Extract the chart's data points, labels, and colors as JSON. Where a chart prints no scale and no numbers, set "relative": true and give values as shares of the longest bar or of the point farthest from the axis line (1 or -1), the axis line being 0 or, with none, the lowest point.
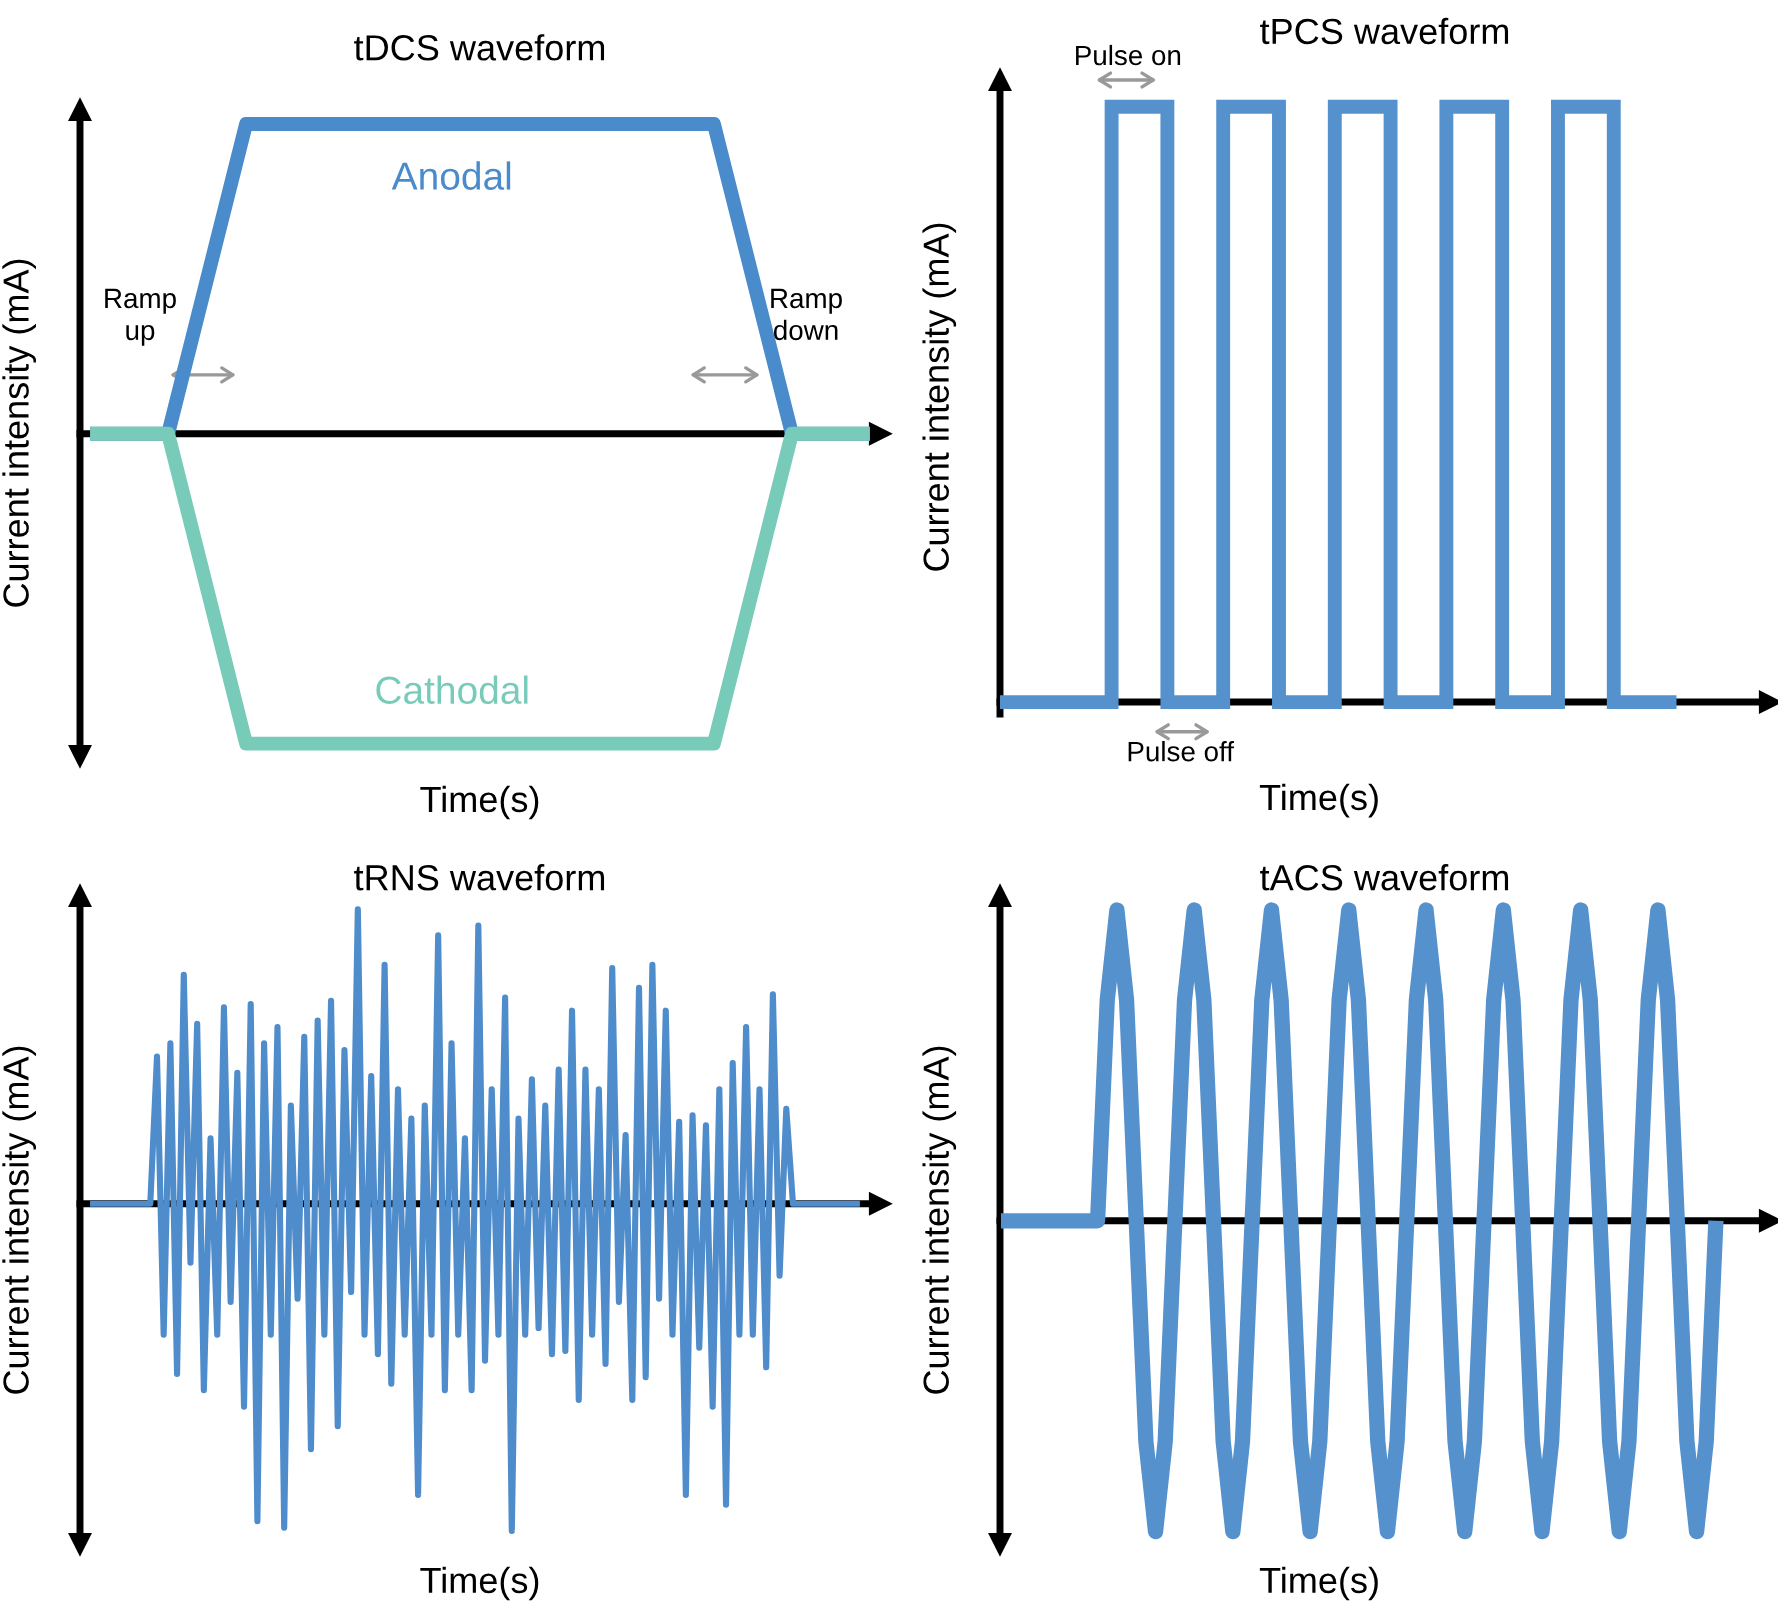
{
  "chart_data": [
    {
      "type": "line",
      "title": "tDCS waveform",
      "xlabel": "Time(s)",
      "ylabel": "Current intensity (mA)",
      "relative": true,
      "categories": [
        null,
        null,
        null,
        null,
        null,
        null,
        null,
        null,
        null,
        null,
        null
      ],
      "series": [
        {
          "name": "Anodal",
          "color": "#4a8bcb",
          "values": [
            0,
            0,
            1,
            1,
            1,
            1,
            1,
            1,
            1,
            0,
            0
          ]
        },
        {
          "name": "Cathodal",
          "color": "#78cbb9",
          "values": [
            0,
            0,
            -1,
            -1,
            -1,
            -1,
            -1,
            -1,
            -1,
            0,
            0
          ]
        }
      ],
      "annotations": [
        "Ramp\nup",
        "Ramp\ndown"
      ]
    },
    {
      "type": "step",
      "title": "tPCS waveform",
      "xlabel": "Time(s)",
      "ylabel": "Current intensity (mA)",
      "relative": true,
      "categories": [
        null,
        null,
        null,
        null,
        null,
        null,
        null,
        null,
        null,
        null,
        null,
        null,
        null
      ],
      "series": [
        {
          "color": "#5591cc",
          "values": [
            0,
            0,
            1,
            0,
            1,
            0,
            1,
            0,
            1,
            0,
            1,
            0,
            0
          ]
        }
      ],
      "annotations": [
        "Pulse on",
        "Pulse off"
      ]
    },
    {
      "type": "line",
      "title": "tRNS waveform",
      "xlabel": "Time(s)",
      "ylabel": "Current intensity (mA)",
      "relative": true,
      "categories": [
        null,
        null,
        null,
        null,
        null,
        null,
        null,
        null,
        null,
        null,
        null,
        null,
        null,
        null,
        null,
        null,
        null,
        null,
        null,
        null,
        null,
        null,
        null,
        null,
        null,
        null,
        null,
        null,
        null,
        null,
        null,
        null,
        null,
        null,
        null,
        null,
        null,
        null,
        null,
        null,
        null,
        null,
        null,
        null,
        null,
        null,
        null,
        null,
        null,
        null,
        null,
        null,
        null,
        null,
        null,
        null,
        null,
        null,
        null,
        null,
        null,
        null,
        null,
        null,
        null,
        null,
        null,
        null,
        null,
        null,
        null,
        null,
        null,
        null,
        null,
        null,
        null,
        null,
        null,
        null,
        null,
        null,
        null,
        null,
        null,
        null,
        null,
        null,
        null,
        null,
        null,
        null,
        null,
        null,
        null,
        null,
        null,
        null,
        null,
        null,
        null,
        null,
        null,
        null,
        null,
        null,
        null,
        null,
        null,
        null,
        null,
        null,
        null,
        null,
        null,
        null
      ],
      "series": [
        {
          "color": "#4f8ccb",
          "values": [
            0,
            0,
            0,
            0,
            0,
            0,
            0,
            0,
            0,
            0,
            0.45,
            -0.4,
            0.49,
            -0.52,
            0.7,
            -0.18,
            0.55,
            -0.57,
            0.2,
            -0.4,
            0.6,
            -0.3,
            0.4,
            -0.62,
            0.61,
            -0.97,
            0.49,
            -0.4,
            0.54,
            -0.99,
            0.3,
            -0.29,
            0.51,
            -0.75,
            0.56,
            -0.4,
            0.62,
            -0.68,
            0.47,
            -0.27,
            0.9,
            -0.4,
            0.39,
            -0.46,
            0.73,
            -0.55,
            0.35,
            -0.4,
            0.26,
            -0.89,
            0.3,
            -0.4,
            0.82,
            -0.57,
            0.49,
            -0.4,
            0.2,
            -0.57,
            0.85,
            -0.48,
            0.35,
            -0.4,
            0.63,
            -1,
            0.26,
            -0.4,
            0.38,
            -0.38,
            0.3,
            -0.46,
            0.41,
            -0.45,
            0.59,
            -0.6,
            0.41,
            -0.4,
            0.35,
            -0.49,
            0.72,
            -0.3,
            0.21,
            -0.6,
            0.66,
            -0.53,
            0.73,
            -0.29,
            0.59,
            -0.4,
            0.25,
            -0.89,
            0.27,
            -0.44,
            0.24,
            -0.62,
            0.35,
            -0.92,
            0.43,
            -0.4,
            0.54,
            -0.4,
            0.35,
            -0.5,
            0.64,
            -0.22,
            0.29,
            0,
            0,
            0,
            0,
            0,
            0,
            0,
            0,
            0,
            0,
            0
          ]
        }
      ]
    },
    {
      "type": "line",
      "title": "tACS waveform",
      "xlabel": "Time(s)",
      "ylabel": "Current intensity (mA)",
      "relative": true,
      "categories": [
        null,
        null,
        null,
        null,
        null,
        null,
        null,
        null,
        null,
        null,
        null,
        null,
        null,
        null,
        null,
        null,
        null,
        null,
        null,
        null,
        null,
        null,
        null,
        null,
        null,
        null,
        null,
        null,
        null,
        null,
        null,
        null,
        null,
        null,
        null,
        null,
        null,
        null,
        null,
        null,
        null,
        null,
        null,
        null,
        null,
        null,
        null,
        null,
        null,
        null,
        null,
        null,
        null,
        null,
        null,
        null,
        null,
        null,
        null,
        null,
        null,
        null,
        null,
        null,
        null,
        null,
        null,
        null,
        null,
        null,
        null,
        null,
        null,
        null,
        null
      ],
      "series": [
        {
          "color": "#5591cc",
          "values": [
            0,
            0,
            0,
            0,
            0,
            0,
            0,
            0,
            0,
            0,
            0,
            0.71,
            1,
            0.71,
            0,
            -0.71,
            -1,
            -0.71,
            0,
            0.71,
            1,
            0.71,
            0,
            -0.71,
            -1,
            -0.71,
            0,
            0.71,
            1,
            0.71,
            0,
            -0.71,
            -1,
            -0.71,
            0,
            0.71,
            1,
            0.71,
            0,
            -0.71,
            -1,
            -0.71,
            0,
            0.71,
            1,
            0.71,
            0,
            -0.71,
            -1,
            -0.71,
            0,
            0.71,
            1,
            0.71,
            0,
            -0.71,
            -1,
            -0.71,
            0,
            0.71,
            1,
            0.71,
            0,
            -0.71,
            -1,
            -0.71,
            0,
            0.71,
            1,
            0.71,
            0,
            -0.71,
            -1,
            -0.71,
            0
          ]
        }
      ]
    }
  ]
}
